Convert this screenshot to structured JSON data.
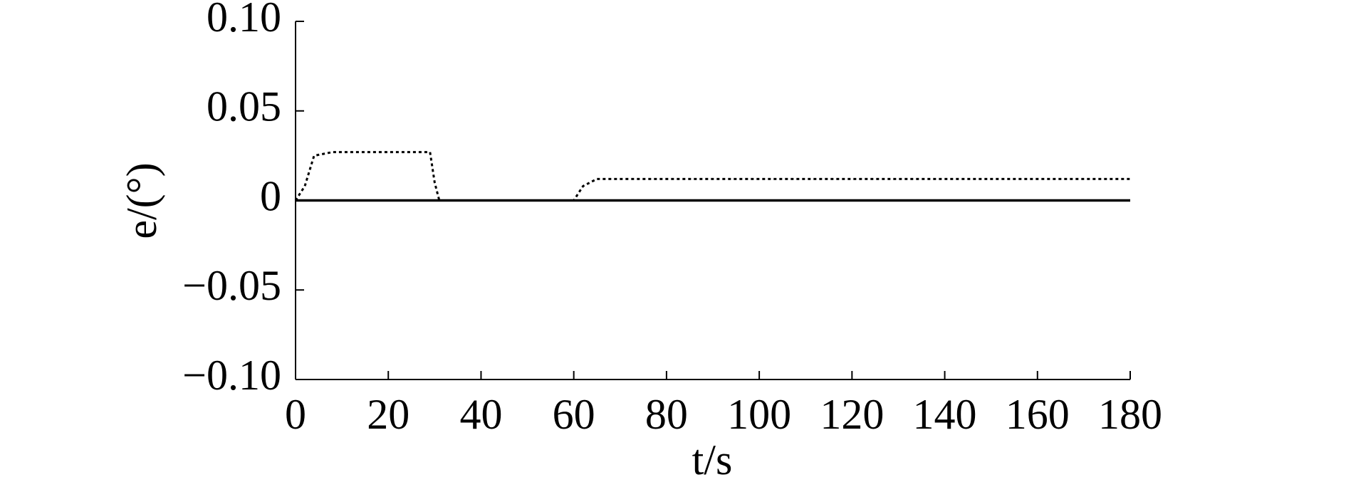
{
  "chart_data": {
    "type": "line",
    "xlabel": "t/s",
    "ylabel": "e/(°)",
    "xlim": [
      0,
      180
    ],
    "xticks": [
      0,
      20,
      40,
      60,
      80,
      100,
      120,
      140,
      160,
      180
    ],
    "ylim": [
      -0.1,
      0.1
    ],
    "yticks": [
      {
        "value": -0.1,
        "label": "−0.10"
      },
      {
        "value": -0.05,
        "label": "−0.05"
      },
      0,
      {
        "value": 0.05,
        "label": "0.05"
      },
      {
        "value": 0.1,
        "label": "0.10"
      }
    ],
    "series": [
      {
        "color": "#000000",
        "dash": "dotted",
        "x": [
          0,
          2,
          4,
          8,
          29,
          30,
          31,
          60,
          62,
          65,
          180
        ],
        "values": [
          0,
          0.008,
          0.025,
          0.027,
          0.027,
          0.01,
          0,
          0,
          0.008,
          0.012,
          0.012
        ]
      },
      {
        "color": "#000000",
        "dash": "solid",
        "x": [
          0,
          180
        ],
        "values": [
          0,
          0
        ]
      }
    ]
  }
}
